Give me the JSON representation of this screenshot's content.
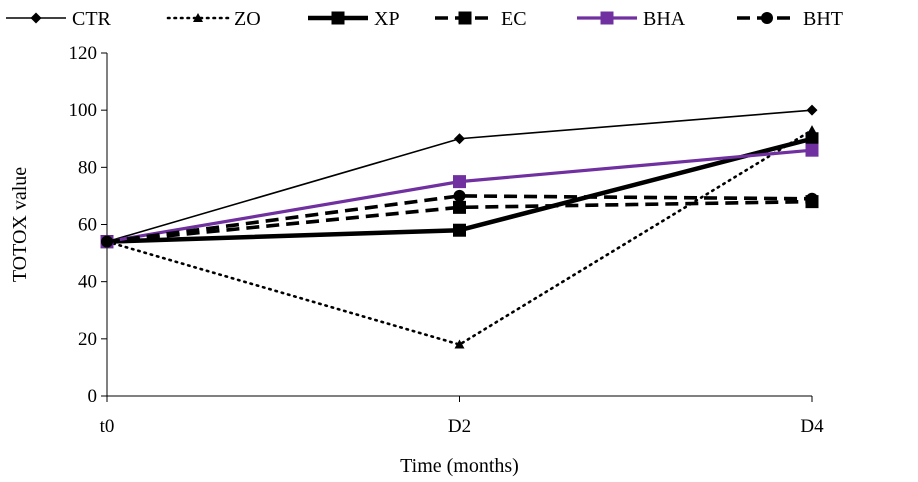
{
  "chart_data": {
    "type": "line",
    "title": "",
    "xlabel": "Time (months)",
    "ylabel": "TOTOX value",
    "categories": [
      "t0",
      "D2",
      "D4"
    ],
    "ylim": [
      0,
      120
    ],
    "yticks": [
      0,
      20,
      40,
      60,
      80,
      100,
      120
    ],
    "grid": false,
    "legend_position": "top",
    "series": [
      {
        "name": "CTR",
        "values": [
          54,
          90,
          100
        ],
        "color": "#000000",
        "line": "solid-thin",
        "marker": "diamond"
      },
      {
        "name": "ZO",
        "values": [
          54,
          18,
          93
        ],
        "color": "#000000",
        "line": "dotted",
        "marker": "triangle"
      },
      {
        "name": "XP",
        "values": [
          54,
          58,
          90
        ],
        "color": "#000000",
        "line": "solid-thick",
        "marker": "square"
      },
      {
        "name": "EC",
        "values": [
          54,
          66,
          68
        ],
        "color": "#000000",
        "line": "dashed",
        "marker": "square"
      },
      {
        "name": "BHA",
        "values": [
          54,
          75,
          86
        ],
        "color": "#7030a0",
        "line": "solid-medium",
        "marker": "square"
      },
      {
        "name": "BHT",
        "values": [
          54,
          70,
          69
        ],
        "color": "#000000",
        "line": "dashed",
        "marker": "circle"
      }
    ]
  }
}
